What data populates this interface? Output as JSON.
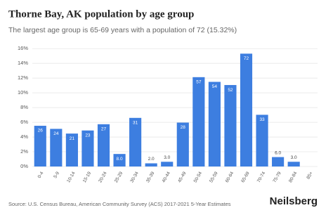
{
  "chart_data": {
    "type": "bar",
    "title": "Thorne Bay, AK population by age group",
    "subtitle": "The largest age group is 65-69 years with a population of 72 (15.32%)",
    "categories": [
      "0-4",
      "5-9",
      "10-14",
      "15-19",
      "20-24",
      "25-29",
      "30-34",
      "35-39",
      "40-44",
      "45-49",
      "50-54",
      "55-59",
      "60-64",
      "65-69",
      "70-74",
      "75-79",
      "80-84",
      "85+"
    ],
    "values": [
      5.53,
      5.11,
      4.47,
      4.89,
      5.74,
      1.7,
      6.6,
      0.43,
      0.64,
      5.96,
      12.13,
      11.49,
      11.06,
      15.32,
      7.02,
      1.28,
      0.64,
      0
    ],
    "value_labels": [
      26,
      24,
      21,
      23,
      27,
      {
        "value": 8,
        "label": "8.0"
      },
      31,
      {
        "value": 2,
        "label": "2.0"
      },
      {
        "value": 3,
        "label": "3.0"
      },
      28,
      57,
      54,
      52,
      72,
      33,
      {
        "value": 6,
        "label": "6.0"
      },
      {
        "value": 3,
        "label": "3.0"
      },
      null
    ],
    "color": "#3d7ee0",
    "ylim": [
      0,
      16.5
    ],
    "yticks": [
      {
        "value": 0,
        "label": "0%"
      },
      {
        "value": 2,
        "label": "2%"
      },
      {
        "value": 4,
        "label": "4%"
      },
      {
        "value": 6,
        "label": "6%"
      },
      {
        "value": 8,
        "label": "8%"
      },
      {
        "value": 10,
        "label": "10%"
      },
      {
        "value": 12,
        "label": "12%"
      },
      {
        "value": 14,
        "label": "14%"
      },
      {
        "value": 16,
        "label": "16%"
      }
    ],
    "grid": true,
    "source": "Source: U.S. Census Bureau, American Community Survey (ACS) 2017-2021 5-Year Estimates",
    "brand": "Neilsberg"
  }
}
